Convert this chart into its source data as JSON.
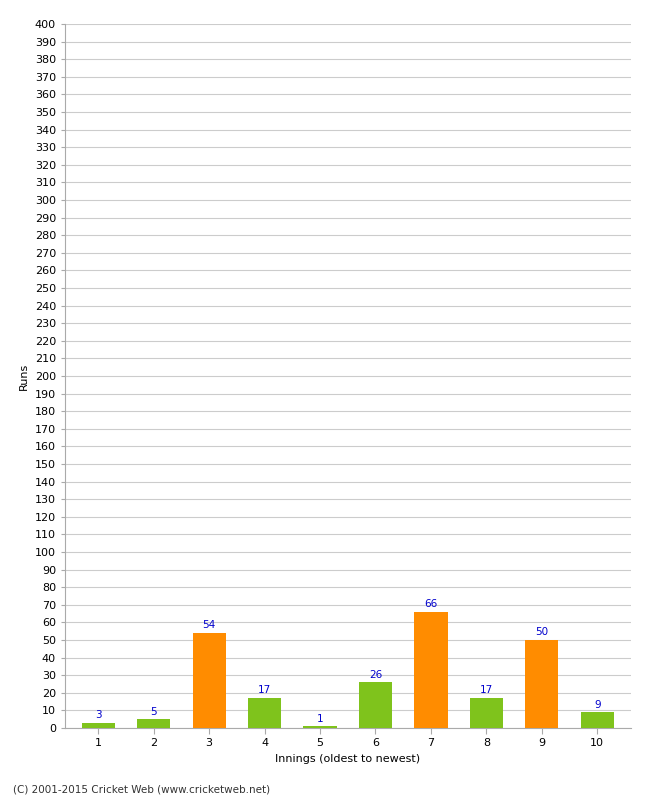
{
  "categories": [
    "1",
    "2",
    "3",
    "4",
    "5",
    "6",
    "7",
    "8",
    "9",
    "10"
  ],
  "values": [
    3,
    5,
    54,
    17,
    1,
    26,
    66,
    17,
    50,
    9
  ],
  "bar_colors": [
    "#7fc31c",
    "#7fc31c",
    "#ff8c00",
    "#7fc31c",
    "#7fc31c",
    "#7fc31c",
    "#ff8c00",
    "#7fc31c",
    "#ff8c00",
    "#7fc31c"
  ],
  "xlabel": "Innings (oldest to newest)",
  "ylabel": "Runs",
  "ylim": [
    0,
    400
  ],
  "ytick_step": 10,
  "label_color": "#0000cd",
  "background_color": "#ffffff",
  "grid_color": "#cccccc",
  "footer": "(C) 2001-2015 Cricket Web (www.cricketweb.net)",
  "label_fontsize": 7.5,
  "axis_fontsize": 8,
  "ylabel_fontsize": 8,
  "footer_fontsize": 7.5
}
